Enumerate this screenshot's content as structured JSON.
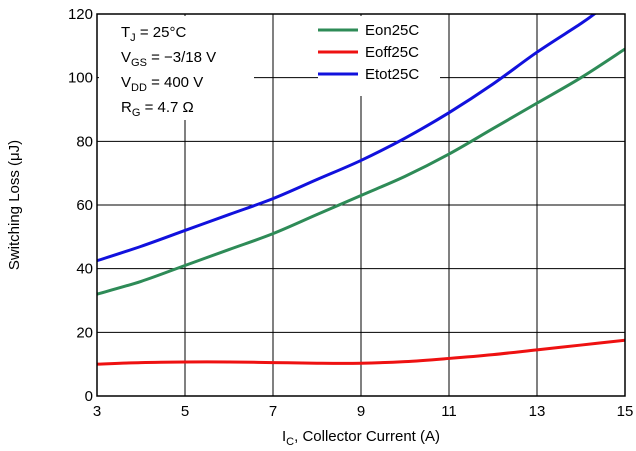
{
  "chart_data": {
    "type": "line",
    "xlabel": {
      "main": "I",
      "sub": "C",
      "rest": ", Collector Current (A)"
    },
    "ylabel": "Switching Loss (μJ)",
    "xlim": [
      3,
      15
    ],
    "ylim": [
      0,
      120
    ],
    "xticks": [
      3,
      5,
      7,
      9,
      11,
      13,
      15
    ],
    "yticks": [
      0,
      20,
      40,
      60,
      80,
      100,
      120
    ],
    "grid": true,
    "legend_position": "top-center",
    "annotations": [
      {
        "main": "T",
        "sub": "J",
        "rest": " = 25°C"
      },
      {
        "main": "V",
        "sub": "GS",
        "rest": " = −3/18 V"
      },
      {
        "main": "V",
        "sub": "DD",
        "rest": " = 400 V"
      },
      {
        "main": "R",
        "sub": "G",
        "rest": " = 4.7 Ω"
      }
    ],
    "series": [
      {
        "name": "Eon25C",
        "color": "#2e8b57",
        "x": [
          3,
          4,
          5,
          6,
          7,
          8,
          9,
          10,
          11,
          12,
          13,
          14,
          15
        ],
        "y": [
          32,
          36,
          41,
          46,
          51,
          57,
          63,
          69,
          76,
          84,
          92,
          100,
          109
        ]
      },
      {
        "name": "Eoff25C",
        "color": "#ee1111",
        "x": [
          3,
          4,
          5,
          6,
          7,
          8,
          9,
          10,
          11,
          12,
          13,
          14,
          15
        ],
        "y": [
          10,
          10.5,
          10.7,
          10.7,
          10.5,
          10.3,
          10.3,
          10.8,
          11.8,
          13,
          14.5,
          16,
          17.5
        ]
      },
      {
        "name": "Etot25C",
        "color": "#1111dd",
        "x": [
          3,
          4,
          5,
          6,
          7,
          8,
          9,
          10,
          11,
          12,
          13,
          14,
          14.4
        ],
        "y": [
          42.5,
          47,
          52,
          57,
          62,
          68,
          74,
          81,
          89,
          98,
          108,
          117,
          121
        ]
      }
    ]
  }
}
